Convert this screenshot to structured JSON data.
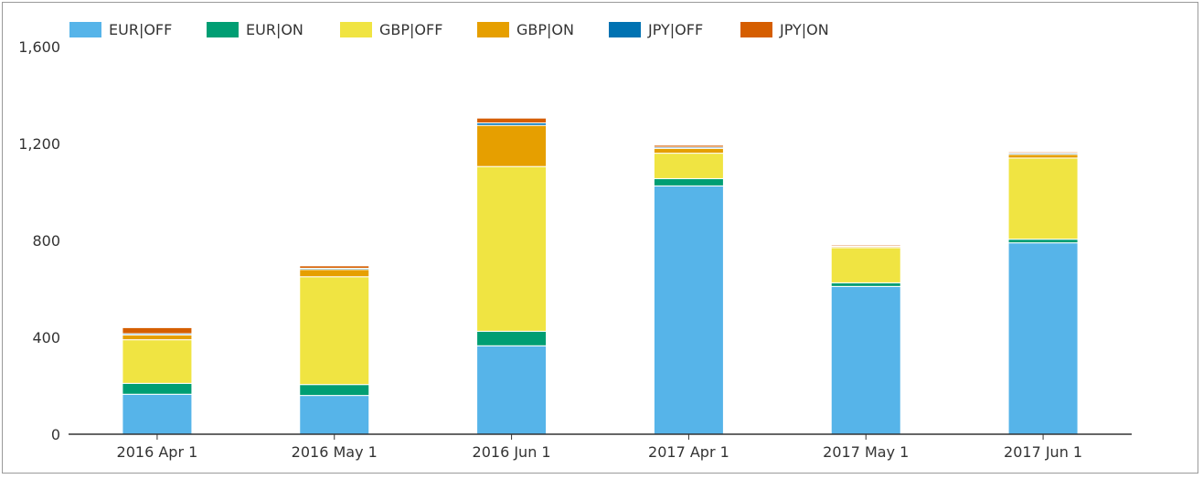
{
  "chart_data": {
    "type": "bar",
    "stacked": true,
    "title": "",
    "xlabel": "",
    "ylabel": "",
    "categories": [
      "2016 Apr 1",
      "2016 May 1",
      "2016 Jun 1",
      "2017 Apr 1",
      "2017 May 1",
      "2017 Jun 1"
    ],
    "series": [
      {
        "name": "EUR|OFF",
        "color": "#56B4E9",
        "values": [
          165,
          160,
          365,
          1025,
          610,
          790
        ]
      },
      {
        "name": "EUR|ON",
        "color": "#009E73",
        "values": [
          45,
          45,
          60,
          30,
          15,
          15
        ]
      },
      {
        "name": "GBP|OFF",
        "color": "#F0E442",
        "values": [
          180,
          445,
          680,
          105,
          145,
          335
        ]
      },
      {
        "name": "GBP|ON",
        "color": "#E69F00",
        "values": [
          20,
          30,
          170,
          20,
          5,
          15
        ]
      },
      {
        "name": "JPY|OFF",
        "color": "#0072B2",
        "values": [
          5,
          5,
          10,
          5,
          3,
          5
        ]
      },
      {
        "name": "JPY|ON",
        "color": "#D55E00",
        "values": [
          25,
          10,
          20,
          8,
          5,
          5
        ]
      }
    ],
    "ylim": [
      0,
      1600
    ],
    "yticks": [
      0,
      400,
      800,
      1200,
      1600
    ],
    "ytick_labels": [
      "0",
      "400",
      "800",
      "1,200",
      "1,600"
    ],
    "legend_position": "top-left",
    "grid": false
  }
}
